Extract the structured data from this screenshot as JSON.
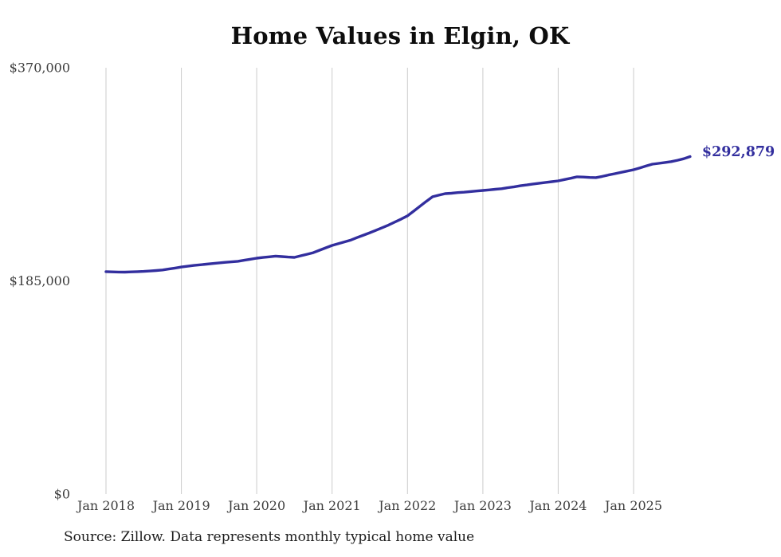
{
  "page": {
    "background": "#ffffff"
  },
  "header": {
    "title": "Home Values in Elgin, OK"
  },
  "footer": {
    "source": "Source: Zillow. Data represents monthly typical home value"
  },
  "chart_data": {
    "type": "line",
    "title": "Home Values in Elgin, OK",
    "series_name": "Monthly typical home value",
    "xlabel": "",
    "ylabel": "",
    "ylim": [
      0,
      370000
    ],
    "grid": "vertical-only",
    "legend": "none",
    "line_color": "#322e9e",
    "grid_color": "#cbcbcb",
    "axis_text_color": "#3d3d3d",
    "end_label": "$292,879",
    "end_label_color": "#322e9e",
    "y_ticks": [
      {
        "value": 0,
        "label": "$0"
      },
      {
        "value": 185000,
        "label": "$185,000"
      },
      {
        "value": 370000,
        "label": "$370,000"
      }
    ],
    "x_ticks": [
      {
        "index": 0,
        "label": "Jan 2018"
      },
      {
        "index": 12,
        "label": "Jan 2019"
      },
      {
        "index": 24,
        "label": "Jan 2020"
      },
      {
        "index": 36,
        "label": "Jan 2021"
      },
      {
        "index": 48,
        "label": "Jan 2022"
      },
      {
        "index": 60,
        "label": "Jan 2023"
      },
      {
        "index": 72,
        "label": "Jan 2024"
      },
      {
        "index": 84,
        "label": "Jan 2025"
      }
    ],
    "x": [
      "2018-01",
      "2018-02",
      "2018-03",
      "2018-04",
      "2018-05",
      "2018-06",
      "2018-07",
      "2018-08",
      "2018-09",
      "2018-10",
      "2018-11",
      "2018-12",
      "2019-01",
      "2019-02",
      "2019-03",
      "2019-04",
      "2019-05",
      "2019-06",
      "2019-07",
      "2019-08",
      "2019-09",
      "2019-10",
      "2019-11",
      "2019-12",
      "2020-01",
      "2020-02",
      "2020-03",
      "2020-04",
      "2020-05",
      "2020-06",
      "2020-07",
      "2020-08",
      "2020-09",
      "2020-10",
      "2020-11",
      "2020-12",
      "2021-01",
      "2021-02",
      "2021-03",
      "2021-04",
      "2021-05",
      "2021-06",
      "2021-07",
      "2021-08",
      "2021-09",
      "2021-10",
      "2021-11",
      "2021-12",
      "2022-01",
      "2022-02",
      "2022-03",
      "2022-04",
      "2022-05",
      "2022-06",
      "2022-07",
      "2022-08",
      "2022-09",
      "2022-10",
      "2022-11",
      "2022-12",
      "2023-01",
      "2023-02",
      "2023-03",
      "2023-04",
      "2023-05",
      "2023-06",
      "2023-07",
      "2023-08",
      "2023-09",
      "2023-10",
      "2023-11",
      "2023-12",
      "2024-01",
      "2024-02",
      "2024-03",
      "2024-04",
      "2024-05",
      "2024-06",
      "2024-07",
      "2024-08",
      "2024-09",
      "2024-10",
      "2024-11",
      "2024-12",
      "2025-01",
      "2025-02",
      "2025-03",
      "2025-04",
      "2025-05",
      "2025-06",
      "2025-07",
      "2025-08",
      "2025-09",
      "2025-10"
    ],
    "values": [
      193000,
      192800,
      192700,
      192600,
      192800,
      193000,
      193200,
      193600,
      194000,
      194500,
      195300,
      196100,
      197000,
      197700,
      198400,
      199000,
      199500,
      200100,
      200600,
      201100,
      201500,
      202000,
      202900,
      203800,
      204700,
      205300,
      205900,
      206500,
      206100,
      205700,
      205400,
      206800,
      208100,
      209500,
      211600,
      213700,
      215800,
      217400,
      218900,
      220500,
      222600,
      224700,
      226800,
      229000,
      231200,
      233500,
      236100,
      238700,
      241400,
      245600,
      249800,
      254000,
      258000,
      259400,
      260700,
      261100,
      261600,
      262000,
      262500,
      263000,
      263500,
      264000,
      264500,
      265000,
      265900,
      266700,
      267600,
      268300,
      269100,
      269800,
      270500,
      271100,
      271800,
      273000,
      274100,
      275300,
      275100,
      274800,
      274600,
      275700,
      276900,
      278000,
      279200,
      280300,
      281500,
      283100,
      284700,
      286300,
      287000,
      287800,
      288500,
      289700,
      291000,
      292879
    ]
  }
}
